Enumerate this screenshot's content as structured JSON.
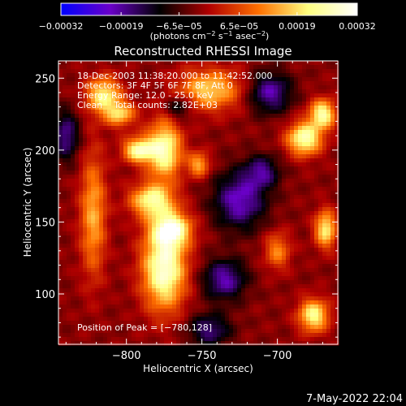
{
  "chart_data": {
    "type": "heatmap",
    "title": "Reconstructed RHESSI Image",
    "xlabel": "Heliocentric X (arcsec)",
    "ylabel": "Heliocentric Y (arcsec)",
    "xlim": [
      -845,
      -660
    ],
    "ylim": [
      65,
      262
    ],
    "x_ticks": [
      -800,
      -750,
      -700
    ],
    "x_tick_labels": [
      "−800",
      "−750",
      "−700"
    ],
    "y_ticks": [
      100,
      150,
      200,
      250
    ],
    "y_tick_labels": [
      "100",
      "150",
      "200",
      "250"
    ],
    "colorbar": {
      "range": [
        -0.00032,
        0.00032
      ],
      "ticks": [
        -0.00032,
        -0.00019,
        -6.5e-05,
        6.5e-05,
        0.00019,
        0.00032
      ],
      "tick_labels": [
        "−0.00032",
        "−0.00019",
        "−6.5e−05",
        "6.5e−05",
        "0.00019",
        "0.00032"
      ],
      "units_text": "(photons cm",
      "units_exp1": "−2",
      "units_mid": " s",
      "units_exp2": "−1",
      "units_end": " asec",
      "units_exp3": "−2",
      "units_close": ")",
      "colors": [
        "#0000ff",
        "#6a00c8",
        "#000000",
        "#b00000",
        "#ff7000",
        "#ffff80",
        "#ffffff"
      ]
    },
    "annotations": [
      "18-Dec-2003 11:38:20.000 to 11:42:52.000",
      "Detectors: 3F 4F 5F 6F 7F 8F, Att 0",
      "Energy Range: 12.0 - 25.0 keV",
      "Clean    Total counts: 2.82E+03"
    ],
    "peak_label": "Position of Peak = [−780,128]",
    "peak_position": [
      -780,
      128
    ],
    "blobs": [
      {
        "x": -775,
        "y": 118,
        "sx": 10,
        "sy": 20,
        "a": 1.0
      },
      {
        "x": -770,
        "y": 145,
        "sx": 9,
        "sy": 8,
        "a": 0.85
      },
      {
        "x": -783,
        "y": 165,
        "sx": 10,
        "sy": 8,
        "a": 0.8
      },
      {
        "x": -792,
        "y": 200,
        "sx": 7,
        "sy": 6,
        "a": 0.85
      },
      {
        "x": -775,
        "y": 200,
        "sx": 8,
        "sy": 14,
        "a": 0.9
      },
      {
        "x": -822,
        "y": 155,
        "sx": 6,
        "sy": 30,
        "a": 0.55
      },
      {
        "x": -815,
        "y": 238,
        "sx": 8,
        "sy": 9,
        "a": 0.75
      },
      {
        "x": -804,
        "y": 225,
        "sx": 7,
        "sy": 6,
        "a": 0.6
      },
      {
        "x": -745,
        "y": 242,
        "sx": 15,
        "sy": 10,
        "a": 0.65
      },
      {
        "x": -752,
        "y": 190,
        "sx": 5,
        "sy": 6,
        "a": 0.55
      },
      {
        "x": -682,
        "y": 208,
        "sx": 8,
        "sy": 8,
        "a": 0.9
      },
      {
        "x": -670,
        "y": 225,
        "sx": 6,
        "sy": 7,
        "a": 0.85
      },
      {
        "x": -668,
        "y": 145,
        "sx": 5,
        "sy": 9,
        "a": 0.75
      },
      {
        "x": -676,
        "y": 85,
        "sx": 7,
        "sy": 8,
        "a": 0.8
      },
      {
        "x": -700,
        "y": 130,
        "sx": 6,
        "sy": 9,
        "a": 0.45
      },
      {
        "x": -725,
        "y": 165,
        "sx": 12,
        "sy": 14,
        "a": -0.6
      },
      {
        "x": -705,
        "y": 240,
        "sx": 10,
        "sy": 10,
        "a": -0.55
      },
      {
        "x": -735,
        "y": 110,
        "sx": 10,
        "sy": 10,
        "a": -0.55
      },
      {
        "x": -745,
        "y": 75,
        "sx": 10,
        "sy": 8,
        "a": -0.45
      },
      {
        "x": -840,
        "y": 210,
        "sx": 6,
        "sy": 12,
        "a": -0.5
      },
      {
        "x": -710,
        "y": 185,
        "sx": 8,
        "sy": 8,
        "a": -0.45
      },
      {
        "x": -765,
        "y": 230,
        "sx": 6,
        "sy": 6,
        "a": -0.4
      }
    ]
  },
  "footer": {
    "date": "7-May-2022 22:04"
  }
}
